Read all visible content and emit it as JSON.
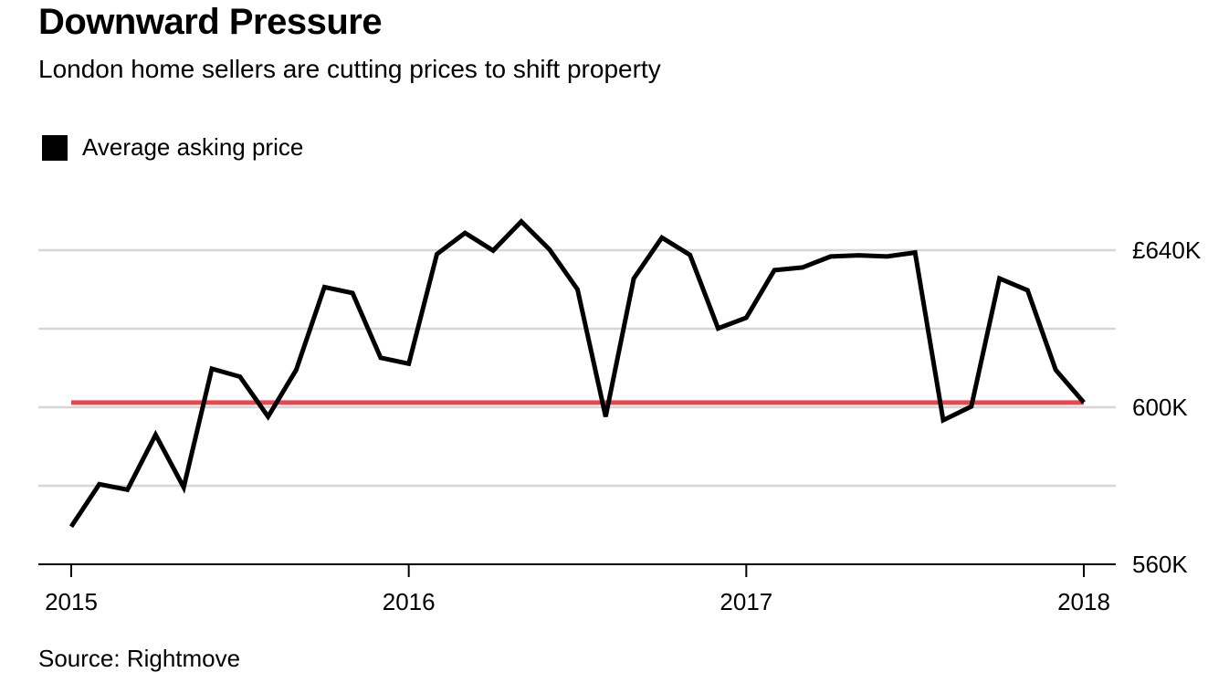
{
  "title": "Downward Pressure",
  "subtitle": "London home sellers are cutting prices to shift property",
  "source": "Source: Rightmove",
  "colors": {
    "series": "#000000",
    "reference": "#e8474e",
    "grid": "#d6d6d6",
    "axis": "#000000"
  },
  "chart_data": {
    "type": "line",
    "title": "Downward Pressure",
    "subtitle": "London home sellers are cutting prices to shift property",
    "legend": {
      "position": "top-left",
      "entries": [
        "Average asking price"
      ]
    },
    "grid": true,
    "y_axis_side": "right",
    "ylim": [
      560000,
      640000
    ],
    "yticks": [
      560000,
      580000,
      600000,
      620000,
      640000
    ],
    "ytick_labels": [
      "560K",
      "",
      "600K",
      "",
      "£640K"
    ],
    "xlim": [
      "2015-01",
      "2018-01"
    ],
    "xticks": [
      "2015-01",
      "2016-01",
      "2017-01",
      "2018-01"
    ],
    "xtick_labels": [
      "2015",
      "2016",
      "2017",
      "2018"
    ],
    "reference_line": {
      "y": 601200,
      "x_start": "2015-01",
      "x_end": "2018-01"
    },
    "series": [
      {
        "name": "Average asking price",
        "x": [
          "2015-01",
          "2015-02",
          "2015-03",
          "2015-04",
          "2015-05",
          "2015-06",
          "2015-07",
          "2015-08",
          "2015-09",
          "2015-10",
          "2015-11",
          "2015-12",
          "2016-01",
          "2016-02",
          "2016-03",
          "2016-04",
          "2016-05",
          "2016-06",
          "2016-07",
          "2016-08",
          "2016-09",
          "2016-10",
          "2016-11",
          "2016-12",
          "2017-01",
          "2017-02",
          "2017-03",
          "2017-04",
          "2017-05",
          "2017-06",
          "2017-07",
          "2017-08",
          "2017-09",
          "2017-10",
          "2017-11",
          "2017-12",
          "2018-01"
        ],
        "values": [
          569600,
          580400,
          579000,
          593000,
          579600,
          609800,
          607800,
          597600,
          609500,
          630600,
          629100,
          612600,
          611100,
          639000,
          644400,
          639900,
          647300,
          640200,
          630000,
          597600,
          632800,
          643200,
          638800,
          620100,
          622800,
          634900,
          635600,
          638400,
          638700,
          638400,
          639400,
          596700,
          600200,
          632800,
          629800,
          609500,
          601200
        ]
      }
    ]
  }
}
